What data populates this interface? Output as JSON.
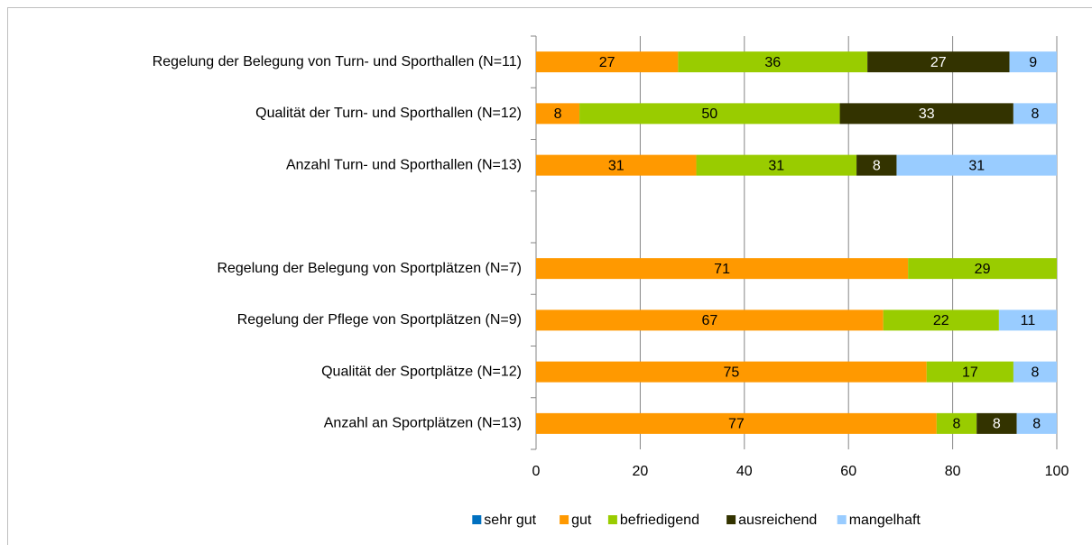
{
  "chart_data": {
    "type": "stacked-barh",
    "categories": [
      "Regelung der Belegung von Turn- und Sporthallen (N=11)",
      "Qualität der Turn- und Sporthallen (N=12)",
      "Anzahl Turn- und Sporthallen (N=13)",
      null,
      "Regelung der Belegung von Sportplätzen (N=7)",
      "Regelung der Pflege von Sportplätzen (N=9)",
      "Qualität der Sportplätze (N=12)",
      "Anzahl an Sportplätzen (N=13)"
    ],
    "series": [
      {
        "name": "sehr gut",
        "color": "#0070c0",
        "values": [
          null,
          null,
          null,
          null,
          null,
          null,
          null,
          null
        ]
      },
      {
        "name": "gut",
        "color": "#ff9900",
        "values": [
          27.27,
          8.33,
          30.77,
          null,
          71.43,
          66.67,
          75,
          76.92
        ],
        "value_labels": [
          "27",
          "8",
          "31",
          null,
          "71",
          "67",
          "75",
          "77"
        ]
      },
      {
        "name": "befriedigend",
        "color": "#99cc00",
        "values": [
          36.36,
          50,
          30.77,
          null,
          28.57,
          22.22,
          16.67,
          7.69
        ],
        "value_labels": [
          "36",
          "50",
          "31",
          null,
          "29",
          "22",
          "17",
          "8"
        ]
      },
      {
        "name": "ausreichend",
        "color": "#333300",
        "values": [
          27.27,
          33.33,
          7.69,
          null,
          null,
          null,
          null,
          7.69
        ],
        "value_labels": [
          "27",
          "33",
          "8",
          null,
          null,
          null,
          null,
          "8"
        ]
      },
      {
        "name": "mangelhaft",
        "color": "#99ccff",
        "values": [
          9.09,
          8.33,
          30.77,
          null,
          null,
          11.11,
          8.33,
          7.69
        ],
        "value_labels": [
          "9",
          "8",
          "31",
          null,
          null,
          "11",
          "8",
          "8"
        ]
      }
    ],
    "xlim": [
      0,
      100
    ],
    "xticks": [
      0,
      20,
      40,
      60,
      80,
      100
    ],
    "grid": true,
    "legend": "bottom"
  }
}
